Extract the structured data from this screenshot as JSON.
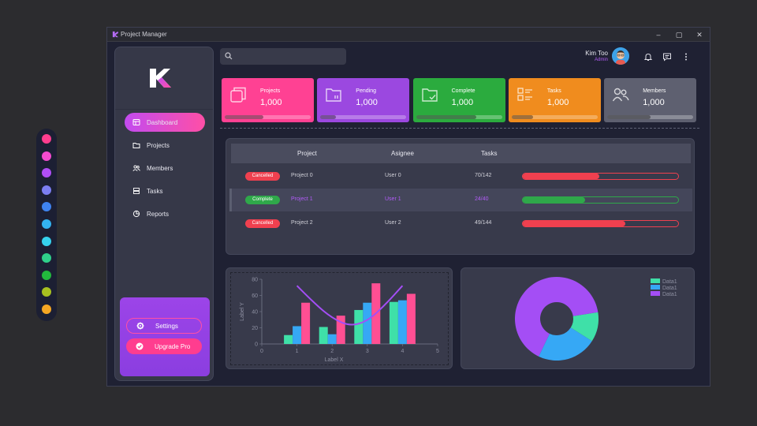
{
  "palette": [
    "#ff3d8f",
    "#f54bd0",
    "#b04ef5",
    "#7c7ef2",
    "#3f83f0",
    "#33b3f0",
    "#36d2ee",
    "#2fcf8a",
    "#22b83d",
    "#a8c020",
    "#f5a623"
  ],
  "window": {
    "title": "Project Manager",
    "min": "–",
    "max": "▢",
    "close": "✕"
  },
  "search": {
    "placeholder": ""
  },
  "user": {
    "name": "Kim Too",
    "role": "Admin"
  },
  "nav": [
    {
      "label": "Dashboard",
      "icon": "dashboard-icon",
      "active": true
    },
    {
      "label": "Projects",
      "icon": "folder-icon"
    },
    {
      "label": "Members",
      "icon": "members-icon"
    },
    {
      "label": "Tasks",
      "icon": "tasks-icon"
    },
    {
      "label": "Reports",
      "icon": "reports-icon"
    }
  ],
  "sidebar_footer": {
    "settings": "Settings",
    "upgrade": "Upgrade Pro"
  },
  "cards": [
    {
      "label": "Projects",
      "value": "1,000",
      "color": "#ff4193",
      "icon": "copy-icon",
      "progress": 0.45
    },
    {
      "label": "Pending",
      "value": "1,000",
      "color": "#9b48e0",
      "icon": "pending-folder-icon",
      "progress": 0.18
    },
    {
      "label": "Complete",
      "value": "1,000",
      "color": "#2bab3e",
      "icon": "complete-folder-icon",
      "progress": 0.7
    },
    {
      "label": "Tasks",
      "value": "1,000",
      "color": "#f08c1e",
      "icon": "tasks-list-icon",
      "progress": 0.25
    },
    {
      "label": "Members",
      "value": "1,000",
      "color": "#5e6070",
      "icon": "members-icon",
      "progress": 0.5
    }
  ],
  "table": {
    "headers": [
      "Project",
      "Asignee",
      "Tasks"
    ],
    "rows": [
      {
        "status": "Cancelled",
        "status_color": "#f0404f",
        "project": "Project 0",
        "assignee": "User 0",
        "tasks": "70/142",
        "progress": 0.49,
        "bar_color": "#f0404f",
        "selected": false
      },
      {
        "status": "Complete",
        "status_color": "#2fa84a",
        "project": "Project 1",
        "assignee": "User 1",
        "tasks": "24/40",
        "progress": 0.4,
        "bar_color": "#2fa84a",
        "selected": true
      },
      {
        "status": "Cancelled",
        "status_color": "#f0404f",
        "project": "Project 2",
        "assignee": "User 2",
        "tasks": "49/144",
        "progress": 0.66,
        "bar_color": "#f0404f",
        "selected": false
      }
    ]
  },
  "chart_data": [
    {
      "type": "bar",
      "xlabel": "Label X",
      "ylabel": "Label Y",
      "xlim": [
        0,
        5
      ],
      "ylim": [
        0,
        80
      ],
      "xticks": [
        "0",
        "1",
        "2",
        "3",
        "4",
        "5"
      ],
      "yticks": [
        "0",
        "20",
        "40",
        "60",
        "80"
      ],
      "categories": [
        1,
        2,
        3,
        4
      ],
      "series": [
        {
          "color": "#3fe0a8",
          "values": [
            11,
            21,
            42,
            52
          ]
        },
        {
          "color": "#36a8f5",
          "values": [
            22,
            12,
            51,
            54
          ]
        },
        {
          "color": "#ff4f93",
          "values": [
            51,
            35,
            75,
            62
          ]
        }
      ],
      "curve": {
        "color": "#a44ef5",
        "x": [
          1,
          1.5,
          2,
          2.5,
          3,
          3.5,
          4
        ],
        "y": [
          72,
          50,
          32,
          22,
          28,
          48,
          72
        ]
      }
    },
    {
      "type": "pie",
      "legend_position": "top-right",
      "slices": [
        {
          "name": "Data1",
          "value": 0.115,
          "color": "#3fe0a8"
        },
        {
          "name": "Data1",
          "value": 0.231,
          "color": "#36a8f5"
        },
        {
          "name": "Data1",
          "value": 0.654,
          "color": "#a44ef5"
        }
      ]
    }
  ]
}
